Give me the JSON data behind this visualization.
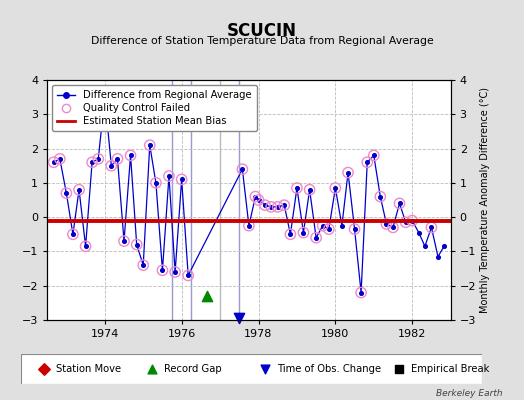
{
  "title": "SCUCIN",
  "subtitle": "Difference of Station Temperature Data from Regional Average",
  "ylabel_right": "Monthly Temperature Anomaly Difference (°C)",
  "credit": "Berkeley Earth",
  "ylim": [
    -3,
    4
  ],
  "xlim": [
    1972.5,
    1983.0
  ],
  "xticks": [
    1974,
    1976,
    1978,
    1980,
    1982
  ],
  "yticks": [
    -3,
    -2,
    -1,
    0,
    1,
    2,
    3,
    4
  ],
  "mean_bias": -0.12,
  "background_color": "#e0e0e0",
  "plot_bg_color": "#ffffff",
  "grid_color": "#bbbbbb",
  "line_color": "#0000cc",
  "bias_color": "#cc0000",
  "vertical_lines_blue": [
    1975.75,
    1976.25,
    1977.5
  ],
  "vertical_lines_gray": [
    1977.0
  ],
  "vline_color": "#8888cc",
  "vline_gray_color": "#aaaaaa",
  "vline_alpha": 0.85,
  "green_triangle_x": 1976.67,
  "green_triangle_y": -2.3,
  "blue_triangle_x": 1977.5,
  "blue_triangle_y": -2.95,
  "time_series_x": [
    1972.67,
    1972.83,
    1973.0,
    1973.17,
    1973.33,
    1973.5,
    1973.67,
    1973.83,
    1974.0,
    1974.17,
    1974.33,
    1974.5,
    1974.67,
    1974.83,
    1975.0,
    1975.17,
    1975.33,
    1975.5,
    1975.67,
    1975.83,
    1976.0,
    1976.17,
    1977.58,
    1977.75,
    1977.92,
    1978.0,
    1978.17,
    1978.33,
    1978.5,
    1978.67,
    1978.83,
    1979.0,
    1979.17,
    1979.33,
    1979.5,
    1979.67,
    1979.83,
    1980.0,
    1980.17,
    1980.33,
    1980.5,
    1980.67,
    1980.83,
    1981.0,
    1981.17,
    1981.33,
    1981.5,
    1981.67,
    1981.83,
    1982.0,
    1982.17,
    1982.33,
    1982.5,
    1982.67,
    1982.83
  ],
  "time_series_y": [
    1.6,
    1.7,
    0.7,
    -0.5,
    0.8,
    -0.85,
    1.6,
    1.7,
    3.5,
    1.5,
    1.7,
    -0.7,
    1.8,
    -0.8,
    -1.4,
    2.1,
    1.0,
    -1.55,
    1.2,
    -1.6,
    1.1,
    -1.7,
    1.4,
    -0.25,
    0.6,
    0.5,
    0.35,
    0.3,
    0.3,
    0.35,
    -0.5,
    0.85,
    -0.45,
    0.8,
    -0.6,
    -0.25,
    -0.35,
    0.85,
    -0.25,
    1.3,
    -0.35,
    -2.2,
    1.6,
    1.8,
    0.6,
    -0.2,
    -0.3,
    0.4,
    -0.15,
    -0.1,
    -0.45,
    -0.85,
    -0.3,
    -1.15,
    -0.85
  ],
  "qc_failed_indices": [
    0,
    1,
    2,
    3,
    4,
    5,
    6,
    7,
    8,
    9,
    10,
    11,
    12,
    13,
    14,
    15,
    16,
    17,
    18,
    19,
    20,
    21,
    22,
    23,
    24,
    25,
    26,
    27,
    28,
    29,
    30,
    31,
    32,
    33,
    34,
    35,
    36,
    37,
    39,
    40,
    41,
    42,
    43,
    44,
    45,
    46,
    47,
    48,
    49,
    52
  ],
  "legend_labels": [
    "Difference from Regional Average",
    "Quality Control Failed",
    "Estimated Station Mean Bias"
  ],
  "bottom_legend_labels": [
    "Station Move",
    "Record Gap",
    "Time of Obs. Change",
    "Empirical Break"
  ]
}
